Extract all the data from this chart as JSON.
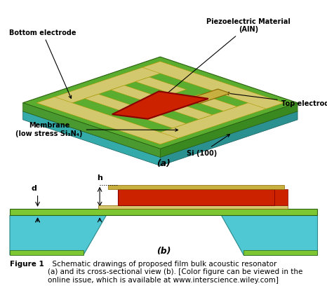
{
  "fig_width": 4.66,
  "fig_height": 4.21,
  "bg_color": "#ffffff",
  "colors": {
    "green_top": "#5aad2e",
    "green_membrane": "#7dc832",
    "cyan_si": "#4fc8d4",
    "yellow_electrode": "#d4c86e",
    "red_ain": "#cc2200",
    "gold_electrode": "#c8b040",
    "dark_green_edge": "#3a7a1a",
    "si_right": "#2a9090",
    "si_left": "#35aaaa",
    "green_right": "#3a8820",
    "green_left": "#4a9830"
  },
  "label_bottom_electrode": "Bottom electrode",
  "label_piezo": "Piezoelectric Material\n(AlN)",
  "label_membrane": "Membrane\n(low stress Si₃N₄)",
  "label_si": "Si (100)",
  "label_top_electrode": "Top electrode",
  "label_a": "(a)",
  "label_b": "(b)",
  "label_d": "d",
  "label_h": "h",
  "figure_caption": "Figure 1",
  "caption_text": "  Schematic drawings of proposed film bulk acoustic resonator\n(a) and its cross-sectional view (b). [Color figure can be viewed in the\nonline issue, which is available at www.interscience.wiley.com]"
}
